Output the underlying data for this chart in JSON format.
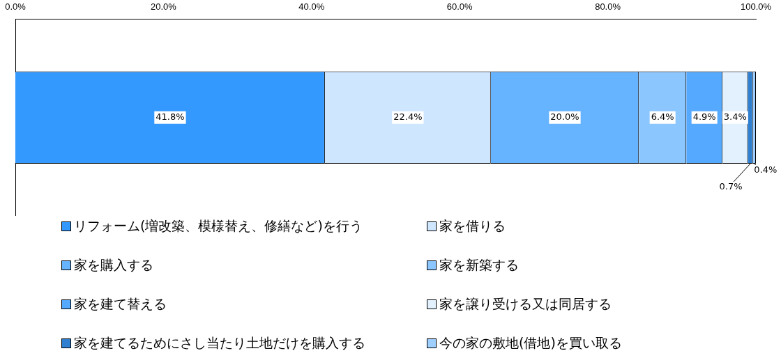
{
  "chart_data": {
    "type": "bar",
    "orientation": "horizontal",
    "stacked": true,
    "categories": [
      null
    ],
    "series": [
      {
        "name": "リフォーム(増改築、模様替え、修繕など)を行う",
        "color": "#3399ff",
        "values": [
          41.8
        ]
      },
      {
        "name": "家を借りる",
        "color": "#cfe6ff",
        "values": [
          22.4
        ]
      },
      {
        "name": "家を購入する",
        "color": "#66b3ff",
        "values": [
          20.0
        ]
      },
      {
        "name": "家を新築する",
        "color": "#8cc6ff",
        "values": [
          6.4
        ]
      },
      {
        "name": "家を建て替える",
        "color": "#55aaff",
        "values": [
          4.9
        ]
      },
      {
        "name": "家を譲り受ける又は同居する",
        "color": "#e3f1ff",
        "values": [
          3.4
        ]
      },
      {
        "name": "家を建てるためにさし当たり土地だけを購入する",
        "color": "#2f7fd0",
        "values": [
          0.7
        ]
      },
      {
        "name": "今の家の敷地(借地)を買い取る",
        "color": "#9fcfff",
        "values": [
          0.4
        ]
      }
    ],
    "xlim": [
      0,
      100
    ],
    "xticks": [
      {
        "value": 0,
        "label": "0.0%"
      },
      {
        "value": 20,
        "label": "20.0%"
      },
      {
        "value": 40,
        "label": "40.0%"
      },
      {
        "value": 60,
        "label": "60.0%"
      },
      {
        "value": 80,
        "label": "80.0%"
      },
      {
        "value": 100,
        "label": "100.0%"
      }
    ],
    "value_labels": [
      "41.8%",
      "22.4%",
      "20.0%",
      "6.4%",
      "4.9%",
      "3.4%",
      "0.7%",
      "0.4%"
    ],
    "grid": false,
    "legend": "bottom"
  }
}
